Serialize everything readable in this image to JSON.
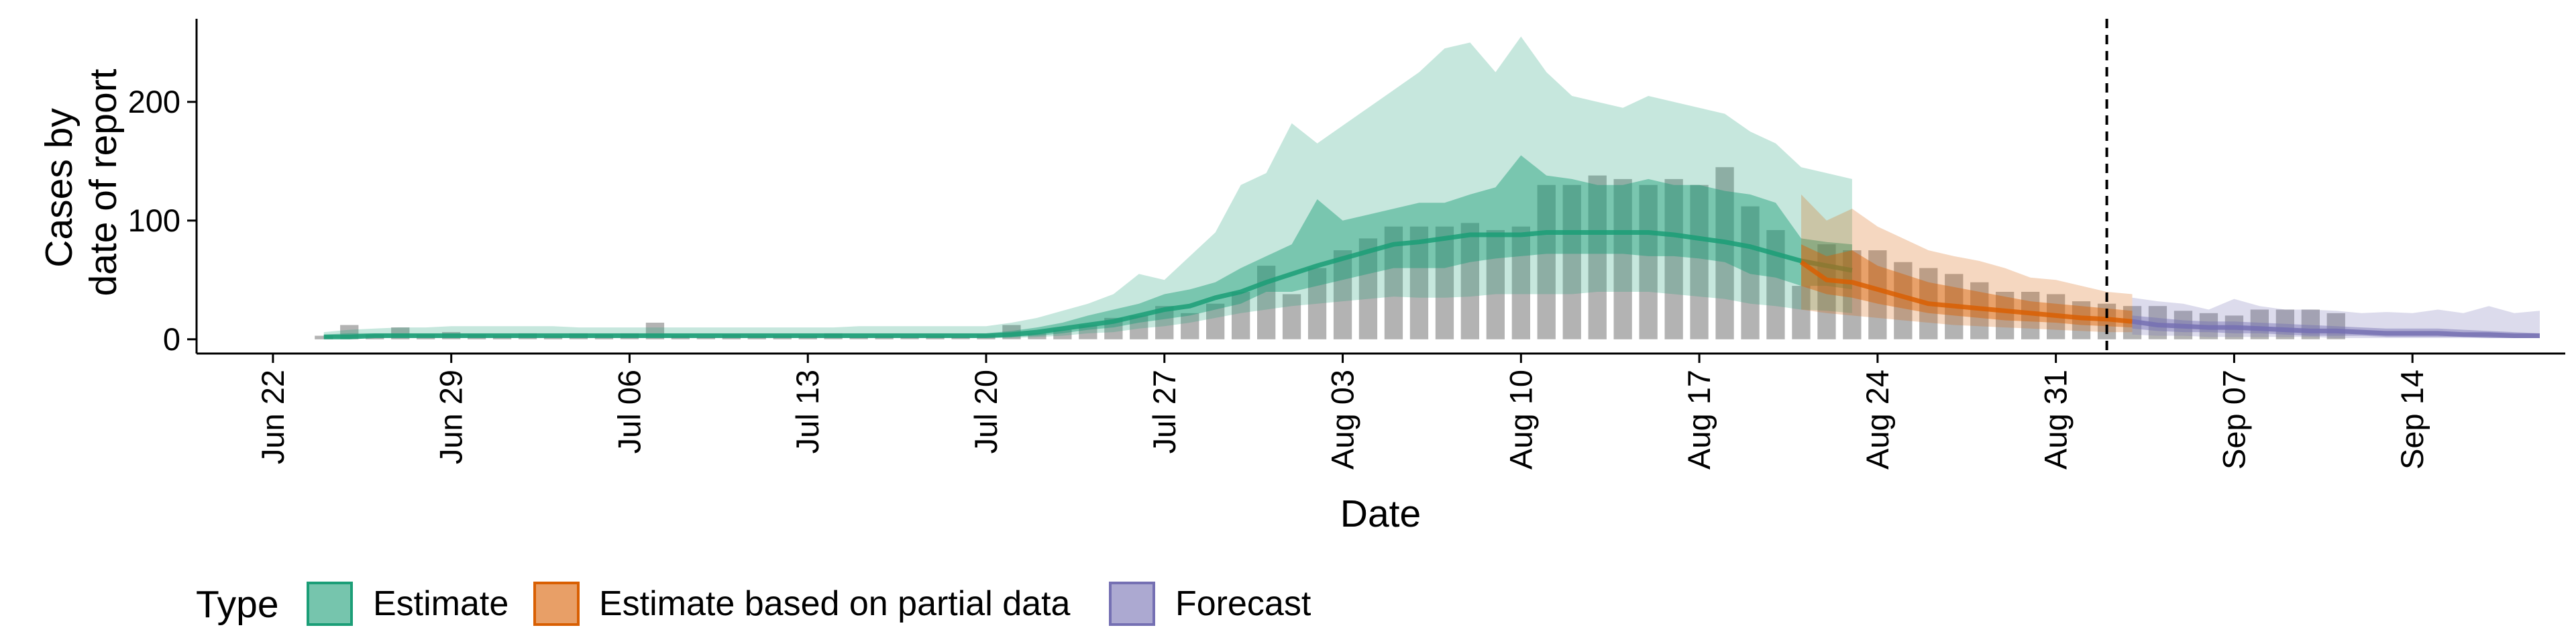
{
  "chart_data": {
    "type": "area",
    "xlabel": "Date",
    "ylabel_lines": [
      "Cases by",
      "date of report"
    ],
    "x_ticks": [
      "Jun 22",
      "Jun 29",
      "Jul 06",
      "Jul 13",
      "Jul 20",
      "Jul 27",
      "Aug 03",
      "Aug 10",
      "Aug 17",
      "Aug 24",
      "Aug 31",
      "Sep 07",
      "Sep 14"
    ],
    "x_tick_dates": [
      "2020-06-22",
      "2020-06-29",
      "2020-07-06",
      "2020-07-13",
      "2020-07-20",
      "2020-07-27",
      "2020-08-03",
      "2020-08-10",
      "2020-08-17",
      "2020-08-24",
      "2020-08-31",
      "2020-09-07",
      "2020-09-14"
    ],
    "y_ticks": [
      0,
      100,
      200
    ],
    "xlim": [
      "2020-06-19",
      "2020-09-20"
    ],
    "ylim": [
      -12,
      270
    ],
    "vline_date": "2020-09-02",
    "grid": false,
    "legend": {
      "title": "Type",
      "position": "bottom-left",
      "items": [
        {
          "label": "Estimate",
          "color": "#1b9e77"
        },
        {
          "label": "Estimate based on partial data",
          "color": "#d95f02"
        },
        {
          "label": "Forecast",
          "color": "#7570b3"
        }
      ]
    },
    "colors": {
      "bars": "#b3b3b3",
      "estimate": "#1b9e77",
      "partial": "#d95f02",
      "forecast": "#7570b3",
      "vline": "#000000"
    },
    "reported_cases": {
      "start_date": "2020-06-24",
      "values": [
        3,
        12,
        4,
        10,
        4,
        6,
        4,
        3,
        5,
        3,
        5,
        4,
        5,
        14,
        3,
        2,
        4,
        3,
        3,
        3,
        5,
        2,
        3,
        2,
        3,
        2,
        4,
        12,
        5,
        8,
        12,
        18,
        20,
        28,
        22,
        30,
        40,
        62,
        38,
        60,
        75,
        85,
        95,
        95,
        95,
        98,
        92,
        95,
        130,
        130,
        138,
        135,
        130,
        135,
        130,
        145,
        112,
        92,
        45,
        80,
        75,
        75,
        65,
        60,
        55,
        48,
        40,
        40,
        38,
        32,
        30,
        28,
        28,
        24,
        22,
        20,
        25,
        25,
        25,
        22
      ]
    },
    "estimate": {
      "start_date": "2020-06-24",
      "median": [
        2,
        2,
        3,
        3,
        3,
        3,
        3,
        3,
        3,
        3,
        3,
        3,
        3,
        3,
        3,
        3,
        3,
        3,
        3,
        3,
        3,
        3,
        3,
        3,
        3,
        3,
        3,
        4,
        6,
        9,
        12,
        15,
        20,
        25,
        28,
        35,
        40,
        48,
        55,
        62,
        68,
        74,
        80,
        82,
        85,
        88,
        88,
        88,
        90,
        90,
        90,
        90,
        90,
        88,
        85,
        82,
        78,
        72,
        66,
        62,
        58
      ],
      "inner_lower": [
        1,
        1,
        2,
        2,
        2,
        2,
        2,
        2,
        2,
        2,
        2,
        2,
        2,
        2,
        2,
        2,
        2,
        2,
        2,
        2,
        2,
        2,
        2,
        2,
        2,
        2,
        2,
        2,
        3,
        5,
        8,
        10,
        14,
        17,
        20,
        25,
        30,
        40,
        40,
        45,
        50,
        55,
        60,
        60,
        60,
        65,
        68,
        70,
        72,
        72,
        72,
        72,
        70,
        70,
        68,
        65,
        55,
        52,
        45,
        45,
        42
      ],
      "inner_upper": [
        4,
        5,
        5,
        5,
        5,
        5,
        5,
        5,
        5,
        5,
        5,
        5,
        5,
        5,
        5,
        5,
        5,
        5,
        5,
        5,
        5,
        5,
        5,
        5,
        5,
        5,
        5,
        7,
        10,
        14,
        20,
        25,
        30,
        38,
        42,
        48,
        60,
        70,
        80,
        118,
        100,
        105,
        110,
        115,
        115,
        122,
        128,
        155,
        138,
        135,
        130,
        130,
        135,
        130,
        130,
        125,
        122,
        115,
        85,
        82,
        80
      ],
      "outer_lower": [
        0,
        0,
        1,
        1,
        1,
        1,
        1,
        1,
        1,
        1,
        1,
        1,
        1,
        1,
        1,
        1,
        1,
        1,
        1,
        1,
        1,
        1,
        1,
        1,
        1,
        1,
        1,
        1,
        2,
        3,
        5,
        6,
        9,
        11,
        14,
        18,
        22,
        25,
        28,
        30,
        32,
        34,
        36,
        35,
        35,
        36,
        38,
        38,
        38,
        38,
        40,
        40,
        40,
        38,
        36,
        34,
        30,
        28,
        25,
        24,
        22
      ],
      "outer_upper": [
        6,
        8,
        9,
        10,
        10,
        11,
        11,
        11,
        11,
        11,
        10,
        10,
        10,
        10,
        10,
        10,
        10,
        10,
        10,
        10,
        10,
        11,
        11,
        11,
        11,
        11,
        11,
        14,
        18,
        24,
        30,
        38,
        55,
        50,
        70,
        90,
        130,
        140,
        182,
        165,
        180,
        195,
        210,
        225,
        245,
        250,
        225,
        255,
        225,
        205,
        200,
        195,
        205,
        200,
        195,
        190,
        175,
        165,
        145,
        140,
        135
      ]
    },
    "partial": {
      "start_date": "2020-08-21",
      "median": [
        65,
        50,
        48,
        42,
        36,
        30,
        28,
        26,
        24,
        22,
        20,
        18,
        17,
        15
      ],
      "inner_lower": [
        45,
        38,
        35,
        30,
        26,
        22,
        20,
        18,
        16,
        15,
        14,
        12,
        11,
        10
      ],
      "inner_upper": [
        80,
        70,
        75,
        62,
        55,
        48,
        44,
        40,
        36,
        32,
        30,
        28,
        26,
        24
      ],
      "outer_lower": [
        25,
        22,
        20,
        18,
        16,
        14,
        12,
        11,
        10,
        9,
        8,
        7,
        6,
        6
      ],
      "outer_upper": [
        122,
        100,
        110,
        95,
        85,
        75,
        70,
        66,
        60,
        52,
        50,
        45,
        40,
        38
      ]
    },
    "forecast": {
      "start_date": "2020-09-03",
      "median": [
        15,
        12,
        11,
        10,
        10,
        9,
        8,
        7,
        7,
        6,
        5,
        5,
        5,
        4,
        4,
        3,
        3
      ],
      "inner_lower": [
        9,
        7,
        6,
        6,
        5,
        5,
        4,
        3,
        3,
        3,
        2,
        2,
        2,
        2,
        1,
        1,
        1
      ],
      "inner_upper": [
        20,
        18,
        16,
        15,
        15,
        14,
        13,
        12,
        11,
        10,
        9,
        9,
        9,
        8,
        7,
        6,
        5
      ],
      "outer_lower": [
        4,
        3,
        3,
        2,
        2,
        2,
        2,
        2,
        1,
        1,
        1,
        1,
        1,
        1,
        1,
        1,
        1
      ],
      "outer_upper": [
        35,
        32,
        30,
        25,
        34,
        28,
        25,
        25,
        24,
        22,
        23,
        22,
        25,
        22,
        28,
        22,
        24
      ]
    }
  }
}
